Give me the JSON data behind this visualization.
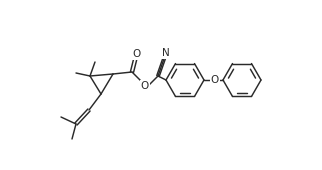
{
  "bg_color": "#ffffff",
  "line_color": "#2a2a2a",
  "line_width": 1.05,
  "figsize": [
    3.22,
    1.7
  ],
  "dpi": 100,
  "atoms": {
    "O_label": "O",
    "N_label": "N"
  },
  "font_size": 7.5
}
